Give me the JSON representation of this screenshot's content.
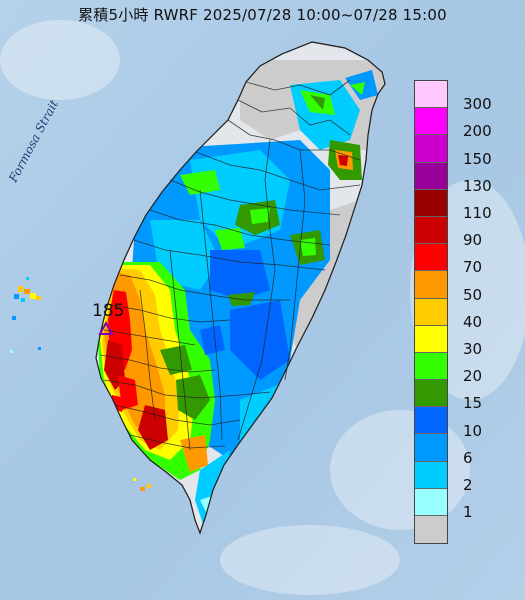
{
  "title": "累積5小時 RWRF 2025/07/28 10:00~07/28 15:00",
  "strait_label": "Formosa Strait",
  "max_marker_value": "185",
  "legend": {
    "levels": [
      "300",
      "200",
      "150",
      "130",
      "110",
      "90",
      "70",
      "50",
      "40",
      "30",
      "20",
      "15",
      "10",
      "6",
      "2",
      "1"
    ],
    "colors": [
      "#ffc8ff",
      "#ff00ff",
      "#cc00cc",
      "#990099",
      "#990000",
      "#cc0000",
      "#ff0000",
      "#ff9900",
      "#ffcc00",
      "#ffff00",
      "#33ff00",
      "#339900",
      "#0066ff",
      "#0099ff",
      "#00ccff",
      "#99ffff",
      "#cccccc"
    ]
  },
  "colors": {
    "sea": "#a9c9e6",
    "land": "#e2e6ec",
    "no_rain": "#c8c8c8"
  }
}
